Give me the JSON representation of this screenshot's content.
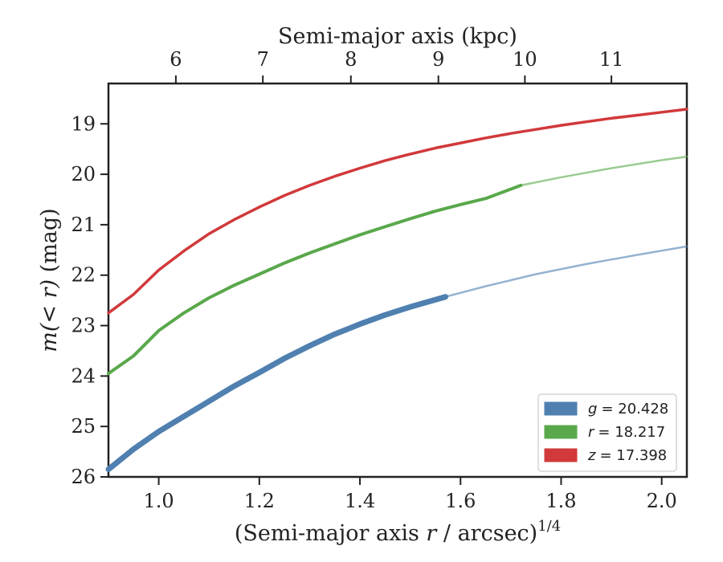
{
  "chart_data": {
    "type": "line",
    "title": "",
    "xlabel_main": "(Semi-major axis ",
    "xlabel_var": "r",
    "xlabel_tail": " / arcsec)",
    "xlabel_sup": "1/4",
    "ylabel_var": "m",
    "ylabel_math": "(< r)",
    "ylabel_unit": " (mag)",
    "top_xlabel": "Semi-major axis (kpc)",
    "xlim": [
      0.9,
      2.05
    ],
    "ylim": [
      26,
      18.2
    ],
    "y_inverted": true,
    "x_ticks": [
      "1.0",
      "1.2",
      "1.4",
      "1.6",
      "1.8",
      "2.0"
    ],
    "x_tick_values": [
      1.0,
      1.2,
      1.4,
      1.6,
      1.8,
      2.0
    ],
    "y_ticks": [
      "19",
      "20",
      "21",
      "22",
      "23",
      "24",
      "25",
      "26"
    ],
    "y_tick_values": [
      19,
      20,
      21,
      22,
      23,
      24,
      25,
      26
    ],
    "top_ticks": [
      "6",
      "7",
      "8",
      "9",
      "10",
      "11"
    ],
    "top_tick_positions_data": [
      1.034,
      1.207,
      1.382,
      1.556,
      1.728,
      1.9
    ],
    "legend_position": "lower right",
    "series": [
      {
        "name": "g",
        "legend_label": "g = 20.428",
        "legend_var": "g",
        "legend_value": "= 20.428",
        "color": "#4f80b0",
        "solid_until": 1.57,
        "x": [
          0.9,
          0.95,
          1.0,
          1.05,
          1.1,
          1.15,
          1.2,
          1.25,
          1.3,
          1.35,
          1.4,
          1.45,
          1.5,
          1.57,
          1.65,
          1.75,
          1.85,
          1.95,
          2.05
        ],
        "y": [
          25.85,
          25.45,
          25.1,
          24.8,
          24.5,
          24.2,
          23.93,
          23.65,
          23.4,
          23.17,
          22.97,
          22.79,
          22.63,
          22.43,
          22.22,
          21.98,
          21.78,
          21.6,
          21.43
        ]
      },
      {
        "name": "r",
        "legend_label": "r = 18.217",
        "legend_var": "r",
        "legend_value": "= 18.217",
        "color": "#59a84b",
        "solid_until": 1.72,
        "x": [
          0.9,
          0.95,
          1.0,
          1.05,
          1.1,
          1.15,
          1.2,
          1.25,
          1.3,
          1.35,
          1.4,
          1.45,
          1.5,
          1.55,
          1.6,
          1.65,
          1.72,
          1.8,
          1.9,
          2.0,
          2.05
        ],
        "y": [
          23.95,
          23.6,
          23.1,
          22.75,
          22.45,
          22.2,
          21.98,
          21.76,
          21.56,
          21.38,
          21.2,
          21.04,
          20.88,
          20.73,
          20.6,
          20.48,
          20.22,
          20.06,
          19.88,
          19.72,
          19.65
        ]
      },
      {
        "name": "z",
        "legend_label": "z = 17.398",
        "legend_var": "z",
        "legend_value": "= 17.398",
        "color": "#d1393b",
        "solid_until": 2.05,
        "x": [
          0.9,
          0.95,
          1.0,
          1.05,
          1.1,
          1.15,
          1.2,
          1.25,
          1.3,
          1.35,
          1.4,
          1.45,
          1.5,
          1.55,
          1.6,
          1.65,
          1.7,
          1.75,
          1.8,
          1.85,
          1.9,
          1.95,
          2.0,
          2.05
        ],
        "y": [
          22.75,
          22.38,
          21.9,
          21.52,
          21.18,
          20.9,
          20.65,
          20.42,
          20.22,
          20.04,
          19.88,
          19.73,
          19.6,
          19.48,
          19.38,
          19.28,
          19.19,
          19.11,
          19.03,
          18.96,
          18.89,
          18.83,
          18.77,
          18.71
        ]
      }
    ]
  }
}
